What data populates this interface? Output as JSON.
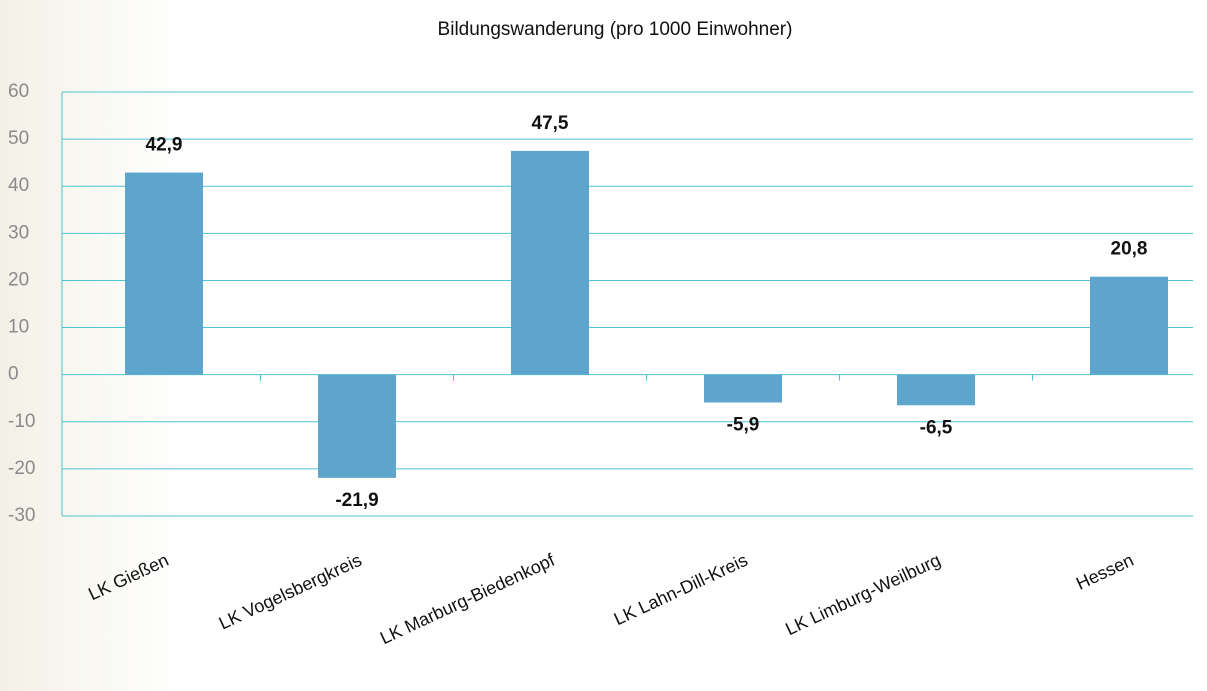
{
  "chart_data": {
    "type": "bar",
    "title": "Bildungswanderung (pro 1000 Einwohner)",
    "categories": [
      "LK Gießen",
      "LK Vogelsbergkreis",
      "LK Marburg-Biedenkopf",
      "LK Lahn-Dill-Kreis",
      "LK Limburg-Weilburg",
      "Hessen"
    ],
    "values": [
      42.9,
      -21.9,
      47.5,
      -5.9,
      -6.5,
      20.8
    ],
    "value_labels": [
      "42,9",
      "-21,9",
      "47,5",
      "-5,9",
      "-6,5",
      "20,8"
    ],
    "color": "#5ea5cd",
    "ylim": [
      -30,
      60
    ],
    "yticks": [
      -30,
      -20,
      -10,
      0,
      10,
      20,
      30,
      40,
      50,
      60
    ],
    "grid": true
  }
}
